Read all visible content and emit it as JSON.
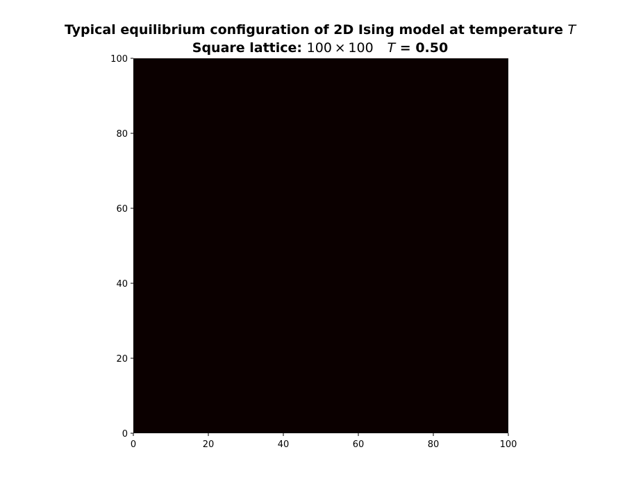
{
  "chart_data": {
    "type": "heatmap",
    "title": "Typical equilibrium configuration of 2D Ising model at temperature",
    "title_symbol": "T",
    "subtitle_prefix": "Square lattice:",
    "subtitle_size": "100 × 100",
    "subtitle_symbol": "T",
    "subtitle_value": "= 0.50",
    "xlim": [
      0,
      100
    ],
    "ylim": [
      0,
      100
    ],
    "xticks": [
      0,
      20,
      40,
      60,
      80,
      100
    ],
    "yticks": [
      0,
      20,
      40,
      60,
      80,
      100
    ],
    "grid": false,
    "lattice": "100x100 uniform",
    "value": -1,
    "colors": {
      "field": "#0b0000",
      "axis": "#000000",
      "background": "#ffffff"
    }
  }
}
